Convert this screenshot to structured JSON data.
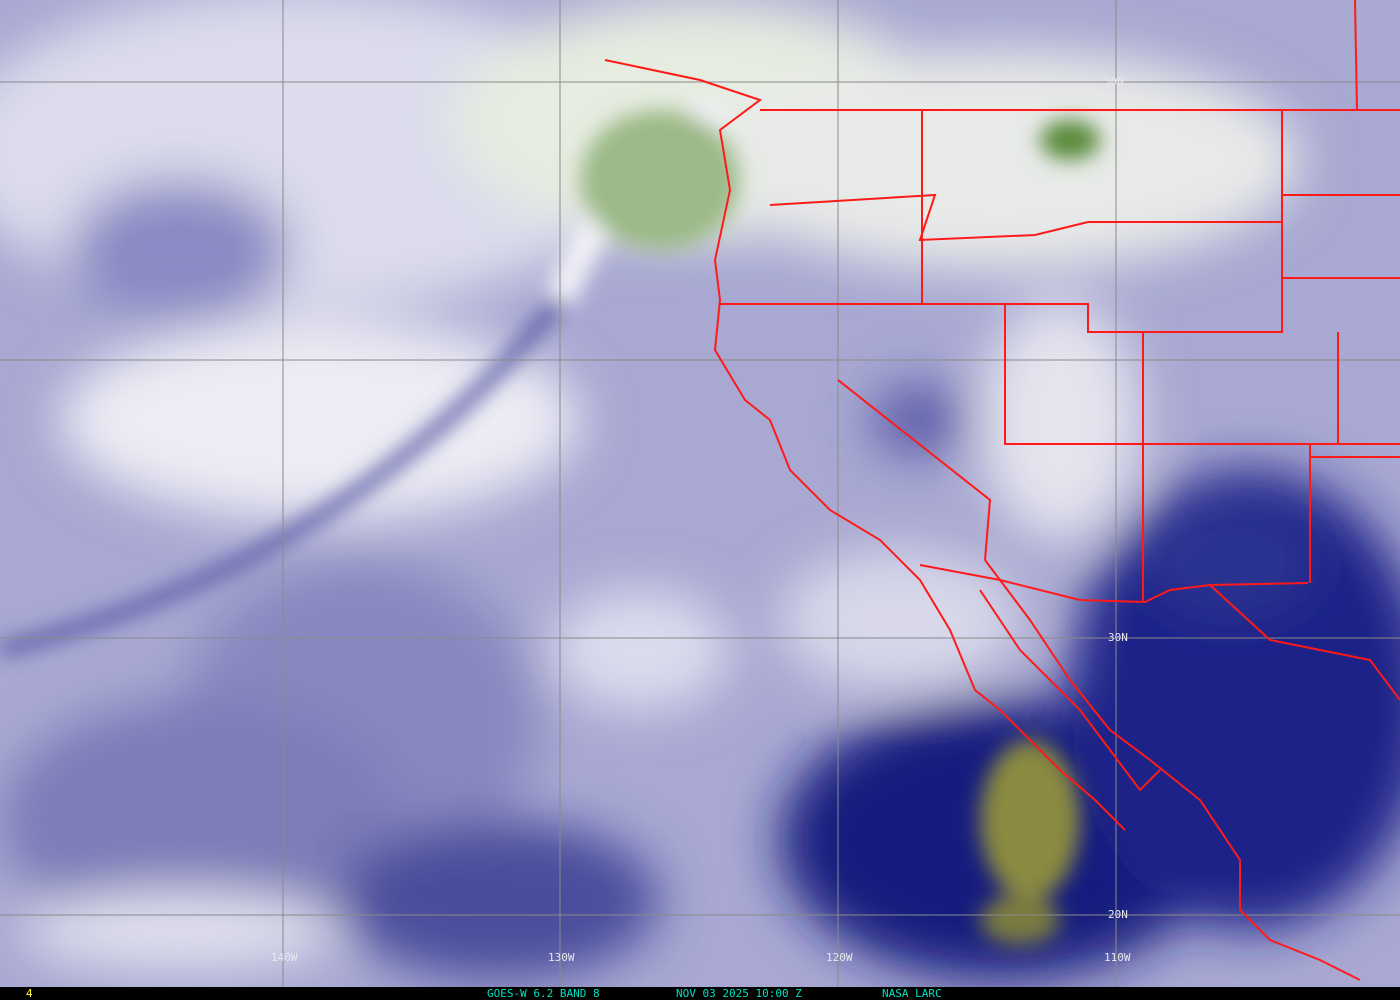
{
  "image": {
    "satellite": "GOES-W",
    "product": "6.2 BAND 8",
    "caption": "GOES-W 6.2 BAND 8",
    "timestamp": "NOV 03 2025 10:00 Z",
    "credit": "NASA LARC",
    "frame_index": "4"
  },
  "grid": {
    "latitude_labels": [
      "50N",
      "30N",
      "20N"
    ],
    "longitude_labels": [
      "140W",
      "130W",
      "120W",
      "110W"
    ]
  },
  "colors": {
    "boundaries": "#ff1a1a",
    "grid": "#8a8a8a",
    "caption_text": "#00e0c0",
    "frame_index_text": "#ffff40",
    "dry": "#1a1f80",
    "moist": "#f4f4fa",
    "very_moist": "#5a8a3a"
  }
}
